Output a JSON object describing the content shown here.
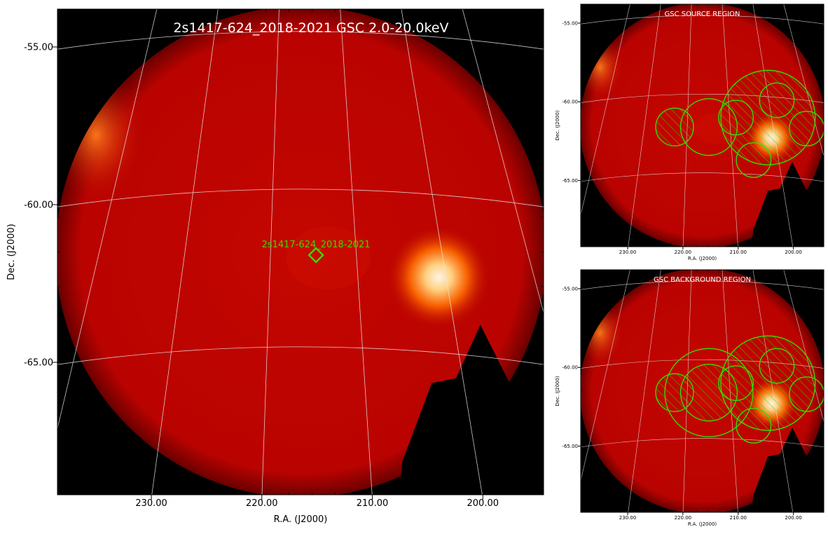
{
  "colors": {
    "background": "#000000",
    "heat_low": "#b50000",
    "heat_mid": "#ff6a00",
    "heat_high": "#fff4e8",
    "region": "#33dd00",
    "label": "#33dd00",
    "grid": "#e8e8e8",
    "title": "#ffffff"
  },
  "icons": {
    "marker": "diamond-marker-icon",
    "region": "circle-region-icon"
  },
  "chart_data": [
    {
      "type": "heatmap",
      "title": "2s1417-624_2018-2021 GSC 2.0-20.0keV",
      "xlabel": "R.A. (J2000)",
      "ylabel": "Dec. (J2000)",
      "x_ticks": [
        "230.00",
        "220.00",
        "210.00",
        "200.00"
      ],
      "y_ticks": [
        "-55.00",
        "-60.00",
        "-65.00"
      ],
      "xlim": [
        238.5,
        194.5
      ],
      "ylim": [
        -69.2,
        -53.8
      ],
      "grid": true,
      "colormap": "hot",
      "sources": [
        {
          "ra": 204.0,
          "dec": -62.3,
          "intensity": 1.0
        },
        {
          "ra": 235.0,
          "dec": -57.8,
          "intensity": 0.3
        }
      ],
      "marker": {
        "ra": 215.1,
        "dec": -61.6,
        "shape": "diamond",
        "label": "2s1417-624_2018-2021"
      }
    },
    {
      "type": "heatmap",
      "title": "GSC SOURCE REGION",
      "xlabel": "R.A. (J2000)",
      "ylabel": "Dec. (J2000)",
      "x_ticks": [
        "230.00",
        "220.00",
        "210.00",
        "200.00"
      ],
      "y_ticks": [
        "-55.00",
        "-60.00",
        "-65.00"
      ],
      "xlim": [
        238.5,
        194.5
      ],
      "ylim": [
        -69.2,
        -53.8
      ],
      "grid": true,
      "colormap": "hot",
      "sources": [
        {
          "ra": 204.0,
          "dec": -62.3,
          "intensity": 1.0
        },
        {
          "ra": 235.0,
          "dec": -57.8,
          "intensity": 0.3
        }
      ],
      "regions": [
        {
          "ra": 221.5,
          "dec": -61.6,
          "r": 1.2,
          "hatched": true
        },
        {
          "ra": 215.3,
          "dec": -61.6,
          "r": 1.8,
          "hatched": false
        },
        {
          "ra": 210.4,
          "dec": -61.0,
          "r": 1.1,
          "hatched": false
        },
        {
          "ra": 204.6,
          "dec": -61.0,
          "r": 3.0,
          "hatched": true
        },
        {
          "ra": 203.0,
          "dec": -59.9,
          "r": 1.1,
          "hatched": false
        },
        {
          "ra": 197.6,
          "dec": -61.7,
          "r": 1.1,
          "hatched": false
        },
        {
          "ra": 207.2,
          "dec": -63.7,
          "r": 1.1,
          "hatched": false
        }
      ]
    },
    {
      "type": "heatmap",
      "title": "GSC BACKGROUND REGION",
      "xlabel": "R.A. (J2000)",
      "ylabel": "Dec. (J2000)",
      "x_ticks": [
        "230.00",
        "220.00",
        "210.00",
        "200.00"
      ],
      "y_ticks": [
        "-55.00",
        "-60.00",
        "-65.00"
      ],
      "xlim": [
        238.5,
        194.5
      ],
      "ylim": [
        -69.2,
        -53.8
      ],
      "grid": true,
      "colormap": "hot",
      "sources": [
        {
          "ra": 204.0,
          "dec": -62.3,
          "intensity": 1.0
        },
        {
          "ra": 235.0,
          "dec": -57.8,
          "intensity": 0.3
        }
      ],
      "regions": [
        {
          "ra": 215.3,
          "dec": -61.6,
          "r": 2.8,
          "hatched": false
        },
        {
          "ra": 221.5,
          "dec": -61.6,
          "r": 1.2,
          "hatched": true
        },
        {
          "ra": 215.3,
          "dec": -61.6,
          "r": 1.8,
          "hatched": true
        },
        {
          "ra": 210.4,
          "dec": -61.0,
          "r": 1.1,
          "hatched": false
        },
        {
          "ra": 204.6,
          "dec": -61.0,
          "r": 3.0,
          "hatched": true
        },
        {
          "ra": 203.0,
          "dec": -59.9,
          "r": 1.1,
          "hatched": false
        },
        {
          "ra": 197.6,
          "dec": -61.7,
          "r": 1.1,
          "hatched": false
        },
        {
          "ra": 207.2,
          "dec": -63.7,
          "r": 1.1,
          "hatched": false
        }
      ]
    }
  ]
}
